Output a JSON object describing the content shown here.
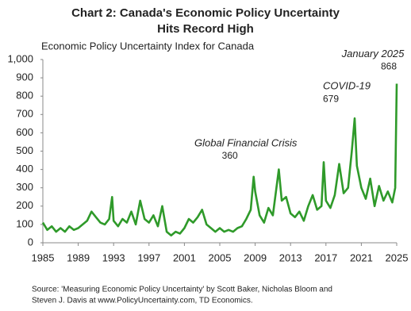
{
  "chart_data": {
    "type": "line",
    "title": "Chart 2: Canada's Economic Policy Uncertainty",
    "title_line2": "Hits Record High",
    "subtitle": "Economic Policy Uncertainty Index for Canada",
    "x": [
      1985.0,
      1985.5,
      1986.0,
      1986.5,
      1987.0,
      1987.5,
      1988.0,
      1988.5,
      1989.0,
      1989.5,
      1990.0,
      1990.5,
      1991.0,
      1991.5,
      1992.0,
      1992.5,
      1992.83,
      1993.0,
      1993.5,
      1994.0,
      1994.5,
      1995.0,
      1995.5,
      1996.0,
      1996.5,
      1997.0,
      1997.5,
      1998.0,
      1998.5,
      1999.0,
      1999.5,
      2000.0,
      2000.5,
      2001.0,
      2001.5,
      2002.0,
      2002.5,
      2003.0,
      2003.5,
      2004.0,
      2004.5,
      2005.0,
      2005.5,
      2006.0,
      2006.5,
      2007.0,
      2007.5,
      2008.0,
      2008.5,
      2008.83,
      2009.0,
      2009.5,
      2010.0,
      2010.5,
      2011.0,
      2011.67,
      2012.0,
      2012.5,
      2013.0,
      2013.5,
      2014.0,
      2014.5,
      2015.0,
      2015.5,
      2016.0,
      2016.5,
      2016.75,
      2017.0,
      2017.5,
      2018.0,
      2018.5,
      2019.0,
      2019.5,
      2019.92,
      2020.25,
      2020.5,
      2021.0,
      2021.5,
      2022.0,
      2022.5,
      2023.0,
      2023.5,
      2024.0,
      2024.5,
      2024.83,
      2025.0
    ],
    "series": [
      {
        "color": "#2f9a2a",
        "values": [
          110,
          70,
          90,
          60,
          80,
          60,
          90,
          70,
          80,
          100,
          120,
          170,
          140,
          110,
          100,
          130,
          250,
          120,
          90,
          130,
          110,
          170,
          100,
          230,
          130,
          110,
          150,
          90,
          200,
          60,
          40,
          60,
          50,
          80,
          130,
          110,
          140,
          180,
          100,
          80,
          60,
          80,
          60,
          70,
          60,
          80,
          90,
          130,
          180,
          360,
          280,
          150,
          110,
          190,
          150,
          400,
          230,
          250,
          160,
          140,
          170,
          120,
          200,
          260,
          180,
          200,
          440,
          230,
          190,
          260,
          430,
          270,
          300,
          500,
          679,
          420,
          300,
          240,
          350,
          200,
          310,
          230,
          280,
          220,
          300,
          868
        ]
      }
    ],
    "xlim": [
      1985,
      2025
    ],
    "xticks": [
      1985,
      1989,
      1993,
      1997,
      2001,
      2005,
      2009,
      2013,
      2017,
      2021,
      2025
    ],
    "ylim": [
      0,
      1000
    ],
    "yticks": [
      0,
      100,
      200,
      300,
      400,
      500,
      600,
      700,
      800,
      {
        "value": 900,
        "label": "900"
      },
      {
        "value": 1000,
        "label": "1,000"
      }
    ],
    "annotations": [
      {
        "text": "Global Financial Crisis",
        "value_label": "360",
        "x": 2008.83,
        "y": 360
      },
      {
        "text": "COVID-19",
        "value_label": "679",
        "x": 2020.25,
        "y": 679
      },
      {
        "text": "January 2025",
        "value_label": "868",
        "x": 2025.0,
        "y": 868
      }
    ],
    "source": [
      "Source: 'Measuring Economic Policy Uncertainty' by Scott Baker, Nicholas Bloom and",
      "Steven J. Davis at www.PolicyUncertainty.com,  TD Economics."
    ]
  }
}
